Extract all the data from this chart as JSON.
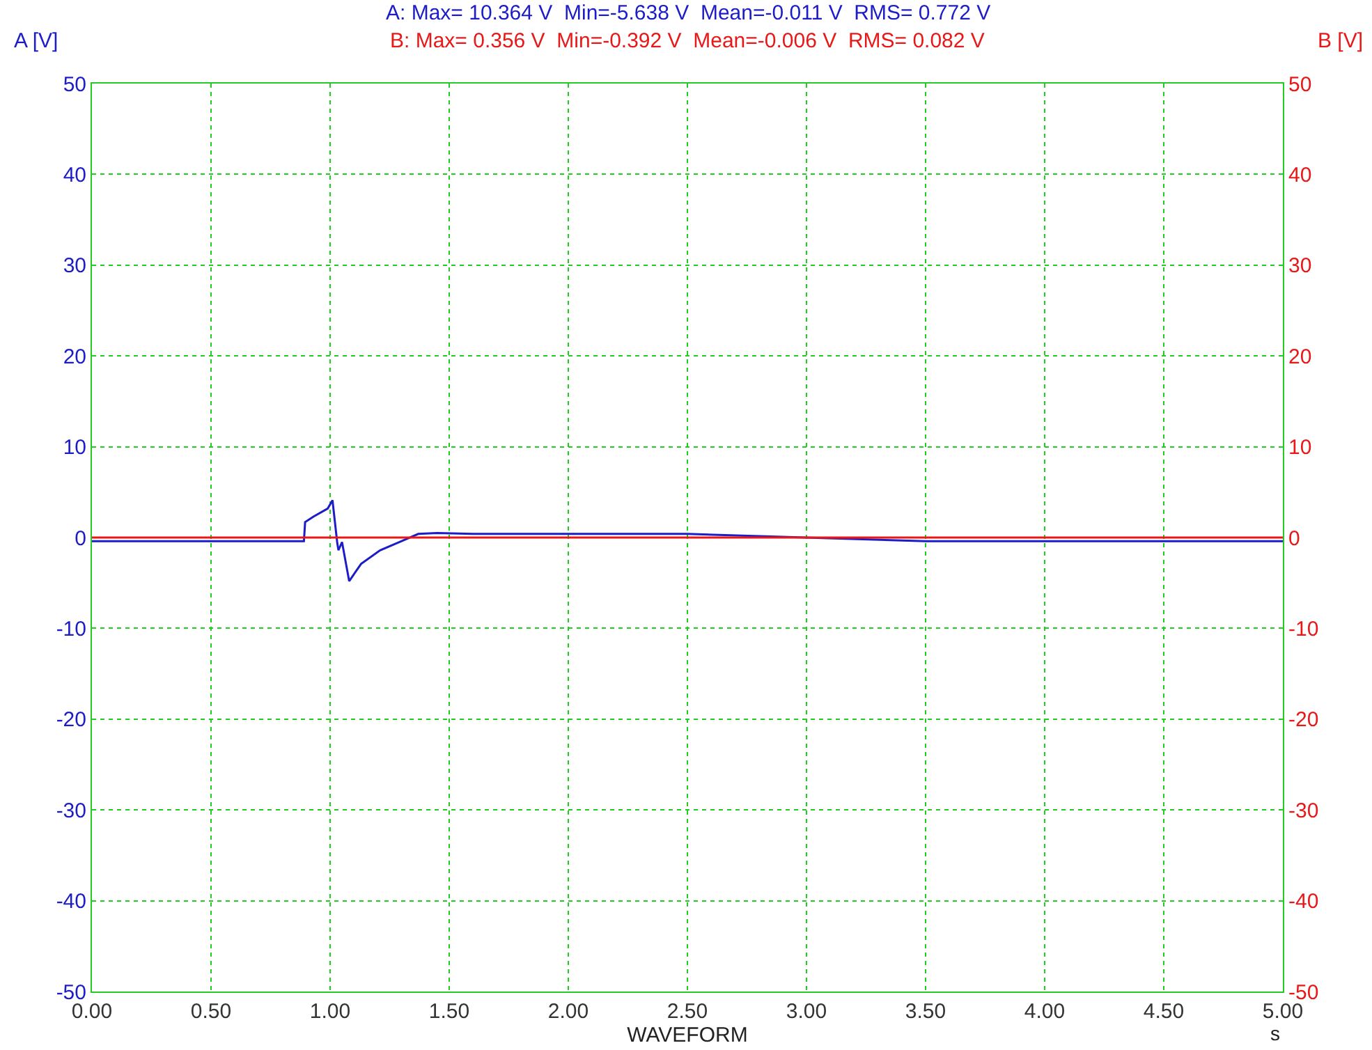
{
  "chart_data": {
    "type": "line",
    "title": "A: Max= 10.364 V  Min=-5.638 V  Mean=-0.011 V  RMS= 0.772 V",
    "subtitle": "B: Max= 0.356 V  Min=-0.392 V  Mean=-0.006 V  RMS= 0.082 V",
    "xlabel": "WAVEFORM",
    "ylabel": "A [V]",
    "y2label": "B [V]",
    "annotations": [
      "s"
    ],
    "series": [
      {
        "color": "#1c1cc8",
        "axis": "y",
        "x": [
          0,
          0.3,
          0.6,
          0.89,
          0.895,
          0.93,
          0.99,
          1.01,
          1.03,
          1.035,
          1.05,
          1.08,
          1.13,
          1.21,
          1.29,
          1.37,
          1.45,
          1.6,
          1.8,
          2.5,
          3.5,
          4.5,
          5
        ],
        "values": [
          -0.4,
          -0.4,
          -0.4,
          -0.4,
          1.7,
          2.3,
          3.2,
          4.1,
          -0.6,
          -1.4,
          -0.5,
          -4.8,
          -2.9,
          -1.4,
          -0.5,
          0.4,
          0.5,
          0.4,
          0.4,
          0.4,
          -0.4,
          -0.4,
          -0.4
        ]
      },
      {
        "color": "#e81818",
        "axis": "y2",
        "x": [
          0,
          5
        ],
        "values": [
          0,
          0
        ]
      }
    ],
    "xlim": [
      0,
      5
    ],
    "xticks": [
      {
        "value": 0,
        "label": "0.00"
      },
      {
        "value": 0.5,
        "label": "0.50"
      },
      {
        "value": 1,
        "label": "1.00"
      },
      {
        "value": 1.5,
        "label": "1.50"
      },
      {
        "value": 2,
        "label": "2.00"
      },
      {
        "value": 2.5,
        "label": "2.50"
      },
      {
        "value": 3,
        "label": "3.00"
      },
      {
        "value": 3.5,
        "label": "3.50"
      },
      {
        "value": 4,
        "label": "4.00"
      },
      {
        "value": 4.5,
        "label": "4.50"
      },
      {
        "value": 5,
        "label": "5.00"
      }
    ],
    "ylim": [
      -50,
      50
    ],
    "yticks": [
      -50,
      -40,
      -30,
      -20,
      -10,
      0,
      10,
      20,
      30,
      40,
      50
    ],
    "y2lim": [
      -50,
      50
    ],
    "y2ticks": [
      -50,
      -40,
      -30,
      -20,
      -10,
      0,
      10,
      20,
      30,
      40,
      50
    ],
    "grid": true,
    "marker": "none",
    "line_style": "solid"
  }
}
